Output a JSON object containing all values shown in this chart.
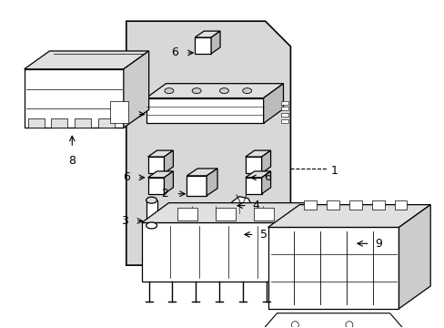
{
  "bg_color": "#ffffff",
  "panel_color": "#d8d8d8",
  "line_color": "#000000",
  "fig_width": 4.89,
  "fig_height": 3.6,
  "dpi": 100
}
